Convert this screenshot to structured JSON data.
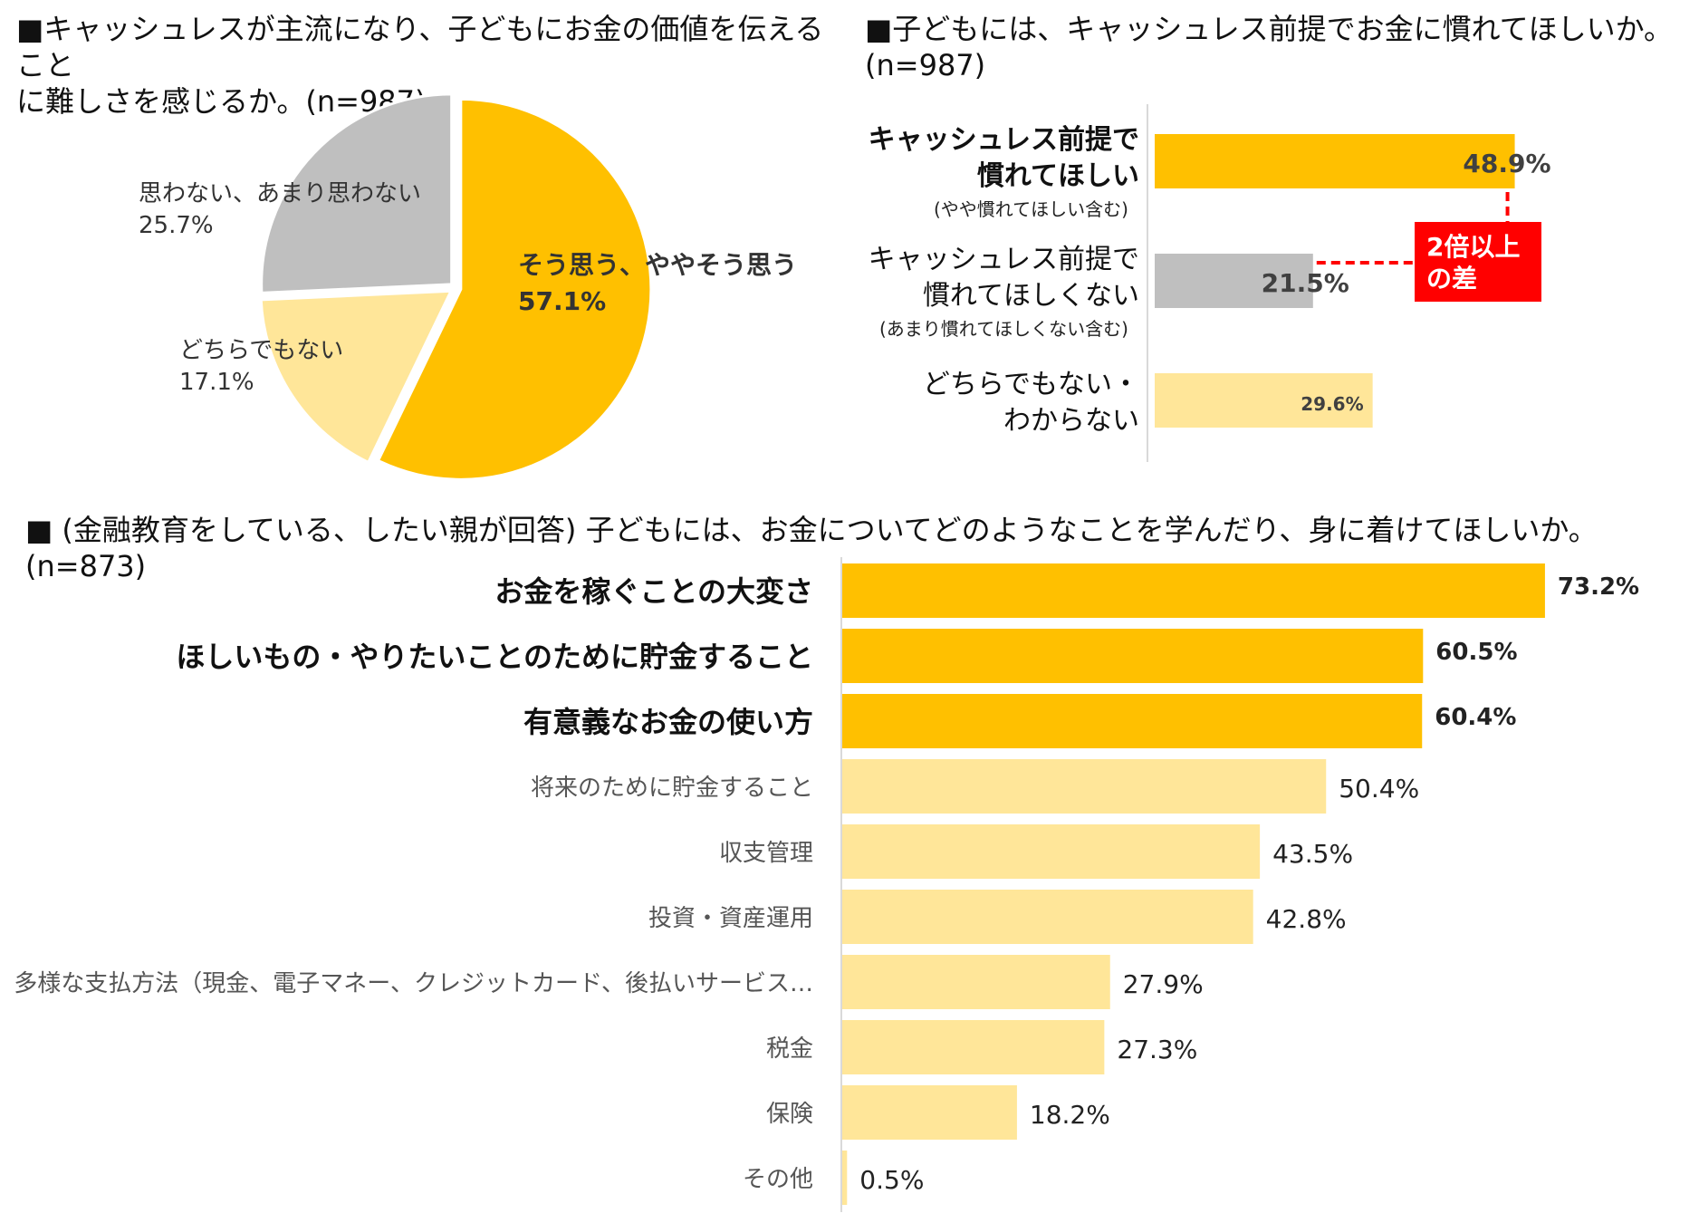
{
  "chart_data": [
    {
      "type": "pie",
      "title": "■キャッシュレスが主流になり、子どもにお金の価値を伝えることに難しさを感じるか。(n=987)",
      "title_lines": [
        "■キャッシュレスが主流になり、子どもにお金の価値を伝えること",
        "に難しさを感じるか。(n=987)"
      ],
      "slices": [
        {
          "label": "そう思う、ややそう思う",
          "value": 57.1,
          "value_label": "57.1%",
          "color": "#FFC000",
          "bold": true
        },
        {
          "label": "どちらでもない",
          "value": 17.1,
          "value_label": "17.1%",
          "color": "#FFE699",
          "bold": false
        },
        {
          "label": "思わない、あまり思わない",
          "value": 25.7,
          "value_label": "25.7%",
          "color": "#BFBFBF",
          "bold": false
        }
      ]
    },
    {
      "type": "bar",
      "orientation": "horizontal",
      "title": "■子どもには、キャッシュレス前提でお金に慣れてほしいか。(n=987)",
      "title_lines": [
        "■子どもには、キャッシュレス前提でお金に慣れてほしいか。",
        "(n=987)"
      ],
      "categories": [
        {
          "lines": [
            "キャッシュレス前提で",
            "慣れてほしい"
          ],
          "sub": "(やや慣れてほしい含む)",
          "value": 48.9,
          "value_label": "48.9%",
          "color": "#FFC000",
          "bold": true
        },
        {
          "lines": [
            "キャッシュレス前提で",
            "慣れてほしくない"
          ],
          "sub": "(あまり慣れてほしくない含む)",
          "value": 21.5,
          "value_label": "21.5%",
          "color": "#BFBFBF",
          "bold": true
        },
        {
          "lines": [
            "どちらでもない・",
            "わからない"
          ],
          "sub": "",
          "value": 29.6,
          "value_label": "29.6%",
          "color": "#FFE699",
          "bold": false
        }
      ],
      "annotation": {
        "lines": [
          "2倍以上",
          "の差"
        ],
        "color": "#FF0000"
      }
    },
    {
      "type": "bar",
      "orientation": "horizontal",
      "title": "■ (金融教育をしている、したい親が回答) 子どもには、お金についてどのようなことを学んだり、身に着けてほしいか。(n=873)",
      "categories": [
        "お金を稼ぐことの大変さ",
        "ほしいもの・やりたいことのために貯金すること",
        "有意義なお金の使い方",
        "将来のために貯金すること",
        "収支管理",
        "投資・資産運用",
        "多様な支払方法（現金、電子マネー、クレジットカード、後払いサービス…",
        "税金",
        "保険",
        "その他"
      ],
      "values": [
        73.2,
        60.5,
        60.4,
        50.4,
        43.5,
        42.8,
        27.9,
        27.3,
        18.2,
        0.5
      ],
      "value_labels": [
        "73.2%",
        "60.5%",
        "60.4%",
        "50.4%",
        "43.5%",
        "42.8%",
        "27.9%",
        "27.3%",
        "18.2%",
        "0.5%"
      ],
      "highlight_count": 3,
      "colors": {
        "highlight": "#FFC000",
        "normal": "#FFE699"
      }
    }
  ]
}
